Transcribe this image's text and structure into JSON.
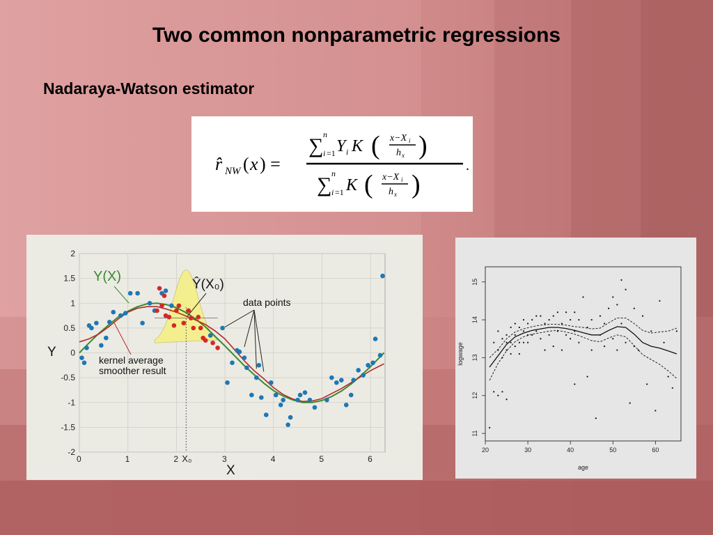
{
  "slide": {
    "title": "Two common nonparametric regressions",
    "subtitle": "Nadaraya-Watson estimator"
  },
  "formula": {
    "lhs": "r̂NW(x) =",
    "numerator": "∑ni=1 Yi K ((x−Xi)/hx)",
    "denominator": "∑ni=1 K ((x−Xi)/hx)",
    "trailing": "."
  },
  "colors": {
    "accent_green": "#3a8a2e",
    "accent_red": "#b22a2a",
    "point_blue": "#1f77b4",
    "point_red": "#d62728",
    "kernel_fill": "#f5f08a"
  },
  "chart_data": [
    {
      "type": "scatter",
      "title": "",
      "xlabel": "X",
      "ylabel": "Y",
      "xlim": [
        0,
        6.3
      ],
      "ylim": [
        -2,
        2
      ],
      "x_ticks": [
        "0",
        "1",
        "2",
        "3",
        "4",
        "5",
        "6"
      ],
      "y_ticks": [
        "2",
        "1.5",
        "1",
        "0.5",
        "0",
        "-0.5",
        "-1",
        "-1.5",
        "-2"
      ],
      "x0_label": "X₀",
      "x0_value": 2.2,
      "grid": true,
      "annotations": {
        "true_curve": "Y(X)",
        "estimate": "Ŷ(X₀)",
        "data_points": "data points",
        "kernel_line1": "kernel average",
        "kernel_line2": "smoother result"
      },
      "series": [
        {
          "name": "Y(X)",
          "color": "#3a8a2e",
          "kind": "line",
          "x": [
            0,
            0.2,
            0.4,
            0.6,
            0.8,
            1.0,
            1.2,
            1.4,
            1.6,
            1.8,
            2.0,
            2.2,
            2.4,
            2.6,
            2.8,
            3.0,
            3.2,
            3.4,
            3.6,
            3.8,
            4.0,
            4.2,
            4.4,
            4.6,
            4.8,
            5.0,
            5.2,
            5.4,
            5.6,
            5.8,
            6.0,
            6.2,
            6.28
          ],
          "y": [
            0.0,
            0.2,
            0.39,
            0.56,
            0.72,
            0.84,
            0.93,
            0.99,
            1.0,
            0.97,
            0.91,
            0.81,
            0.68,
            0.52,
            0.33,
            0.14,
            -0.06,
            -0.26,
            -0.44,
            -0.61,
            -0.76,
            -0.87,
            -0.95,
            -1.0,
            -1.0,
            -0.96,
            -0.88,
            -0.77,
            -0.63,
            -0.46,
            -0.28,
            -0.08,
            0.0
          ]
        },
        {
          "name": "kernel average smoother result",
          "color": "#b22a2a",
          "kind": "line",
          "x": [
            0,
            0.2,
            0.4,
            0.6,
            0.8,
            1.0,
            1.2,
            1.4,
            1.6,
            1.8,
            2.0,
            2.2,
            2.4,
            2.6,
            2.8,
            3.0,
            3.2,
            3.4,
            3.6,
            3.8,
            4.0,
            4.2,
            4.4,
            4.6,
            4.8,
            5.0,
            5.2,
            5.4,
            5.6,
            5.8,
            6.0,
            6.2,
            6.28
          ],
          "y": [
            0.22,
            0.28,
            0.38,
            0.52,
            0.68,
            0.82,
            0.9,
            0.93,
            0.93,
            0.88,
            0.82,
            0.74,
            0.66,
            0.57,
            0.44,
            0.28,
            0.06,
            -0.16,
            -0.36,
            -0.52,
            -0.7,
            -0.84,
            -0.93,
            -0.98,
            -0.97,
            -0.92,
            -0.82,
            -0.72,
            -0.6,
            -0.48,
            -0.36,
            -0.26,
            -0.22
          ]
        },
        {
          "name": "data points",
          "color": "#1f77b4",
          "kind": "points",
          "x": [
            0.05,
            0.1,
            0.15,
            0.2,
            0.25,
            0.35,
            0.45,
            0.55,
            0.62,
            0.7,
            0.85,
            0.95,
            1.05,
            1.2,
            1.3,
            1.45,
            1.55,
            1.7,
            1.78,
            1.9,
            2.7,
            2.95,
            3.05,
            3.15,
            3.25,
            3.3,
            3.4,
            3.45,
            3.55,
            3.65,
            3.7,
            3.75,
            3.85,
            3.95,
            4.05,
            4.15,
            4.2,
            4.3,
            4.35,
            4.5,
            4.55,
            4.65,
            4.75,
            4.85,
            5.1,
            5.2,
            5.3,
            5.4,
            5.5,
            5.6,
            5.65,
            5.75,
            5.85,
            5.95,
            6.05,
            6.1,
            6.2,
            6.25
          ],
          "y": [
            -0.1,
            -0.2,
            0.1,
            0.55,
            0.5,
            0.6,
            0.15,
            0.3,
            0.62,
            0.82,
            0.75,
            0.8,
            1.2,
            1.2,
            0.6,
            1.0,
            0.85,
            1.2,
            1.25,
            0.95,
            0.35,
            0.5,
            -0.6,
            -0.2,
            0.05,
            0.02,
            -0.1,
            -0.3,
            -0.85,
            -0.5,
            -0.25,
            -0.9,
            -1.25,
            -0.6,
            -0.85,
            -1.05,
            -0.95,
            -1.45,
            -1.3,
            -0.95,
            -0.85,
            -0.8,
            -0.95,
            -1.1,
            -0.95,
            -0.5,
            -0.6,
            -0.55,
            -1.05,
            -0.85,
            -0.55,
            -0.35,
            -0.45,
            -0.25,
            -0.2,
            0.28,
            -0.05,
            1.55
          ],
          "note_last": ""
        },
        {
          "name": "kernel window points",
          "color": "#d62728",
          "kind": "points",
          "x": [
            1.6,
            1.7,
            1.78,
            1.85,
            1.95,
            2.0,
            2.05,
            2.15,
            2.25,
            2.3,
            2.35,
            2.45,
            2.5,
            2.55,
            2.6,
            2.75,
            2.85,
            1.65,
            1.75
          ],
          "y": [
            0.85,
            0.95,
            0.75,
            0.72,
            0.55,
            0.85,
            0.95,
            0.6,
            0.85,
            0.7,
            0.5,
            0.72,
            0.5,
            0.3,
            0.25,
            0.2,
            0.1,
            1.3,
            1.15
          ]
        }
      ]
    },
    {
      "type": "scatter",
      "title": "",
      "xlabel": "age",
      "ylabel": "logwage",
      "xlim": [
        20,
        66
      ],
      "ylim": [
        10.8,
        15.4
      ],
      "x_ticks": [
        "20",
        "30",
        "40",
        "50",
        "60"
      ],
      "y_ticks": [
        "11",
        "12",
        "13",
        "14",
        "15"
      ],
      "grid": false,
      "series": [
        {
          "name": "smooth",
          "kind": "line",
          "dash": false,
          "x": [
            21,
            23,
            25,
            27,
            29,
            31,
            33,
            35,
            37,
            39,
            41,
            43,
            45,
            47,
            49,
            51,
            53,
            55,
            57,
            59,
            61,
            63,
            65
          ],
          "y": [
            12.75,
            13.05,
            13.35,
            13.55,
            13.65,
            13.72,
            13.76,
            13.8,
            13.8,
            13.77,
            13.72,
            13.66,
            13.6,
            13.6,
            13.72,
            13.82,
            13.8,
            13.62,
            13.4,
            13.3,
            13.25,
            13.18,
            13.1
          ]
        },
        {
          "name": "upper band",
          "kind": "line",
          "dash": true,
          "x": [
            21,
            23,
            25,
            27,
            29,
            31,
            33,
            35,
            37,
            39,
            41,
            43,
            45,
            47,
            49,
            51,
            53,
            55,
            57,
            59,
            61,
            63,
            65
          ],
          "y": [
            13.0,
            13.22,
            13.5,
            13.68,
            13.76,
            13.82,
            13.86,
            13.88,
            13.88,
            13.86,
            13.82,
            13.8,
            13.76,
            13.78,
            13.92,
            14.05,
            14.05,
            13.9,
            13.72,
            13.65,
            13.68,
            13.7,
            13.78
          ]
        },
        {
          "name": "lower band",
          "kind": "line",
          "dash": true,
          "x": [
            21,
            23,
            25,
            27,
            29,
            31,
            33,
            35,
            37,
            39,
            41,
            43,
            45,
            47,
            49,
            51,
            53,
            55,
            57,
            59,
            61,
            63,
            65
          ],
          "y": [
            12.4,
            12.85,
            13.18,
            13.42,
            13.55,
            13.62,
            13.66,
            13.7,
            13.72,
            13.68,
            13.62,
            13.54,
            13.45,
            13.42,
            13.52,
            13.6,
            13.55,
            13.32,
            13.08,
            12.95,
            12.82,
            12.65,
            12.45
          ]
        },
        {
          "name": "points",
          "kind": "points",
          "x": [
            21,
            22,
            22,
            23,
            23,
            23,
            24,
            24,
            24,
            25,
            25,
            25,
            25,
            26,
            26,
            26,
            27,
            27,
            27,
            28,
            28,
            28,
            29,
            29,
            29,
            30,
            30,
            30,
            31,
            31,
            32,
            32,
            33,
            33,
            34,
            34,
            35,
            35,
            36,
            36,
            37,
            37,
            38,
            38,
            39,
            39,
            40,
            40,
            41,
            41,
            41,
            42,
            42,
            43,
            44,
            44,
            45,
            45,
            46,
            47,
            47,
            48,
            48,
            49,
            50,
            50,
            51,
            51,
            52,
            52,
            53,
            53,
            54,
            55,
            55,
            56,
            57,
            58,
            59,
            60,
            61,
            62,
            63,
            64,
            65
          ],
          "y": [
            11.15,
            13.4,
            12.1,
            13.7,
            12.0,
            13.2,
            13.5,
            13.0,
            12.1,
            13.6,
            13.2,
            11.9,
            13.4,
            13.8,
            13.4,
            13.1,
            13.9,
            13.6,
            13.3,
            13.8,
            13.4,
            13.1,
            14.0,
            13.7,
            13.4,
            13.9,
            13.6,
            13.4,
            14.0,
            13.6,
            14.1,
            13.7,
            14.1,
            13.5,
            13.9,
            13.2,
            14.0,
            13.6,
            14.1,
            13.3,
            14.2,
            13.7,
            13.9,
            13.2,
            14.2,
            13.6,
            14.0,
            13.5,
            12.3,
            14.2,
            13.7,
            14.0,
            13.4,
            14.6,
            12.5,
            13.8,
            14.0,
            13.2,
            11.4,
            13.6,
            14.1,
            13.3,
            13.9,
            14.3,
            14.6,
            13.5,
            13.2,
            14.4,
            15.05,
            13.9,
            14.8,
            13.4,
            11.8,
            14.3,
            13.3,
            13.2,
            14.1,
            12.3,
            13.7,
            11.6,
            14.5,
            13.4,
            12.5,
            12.2,
            13.7
          ]
        }
      ]
    }
  ]
}
